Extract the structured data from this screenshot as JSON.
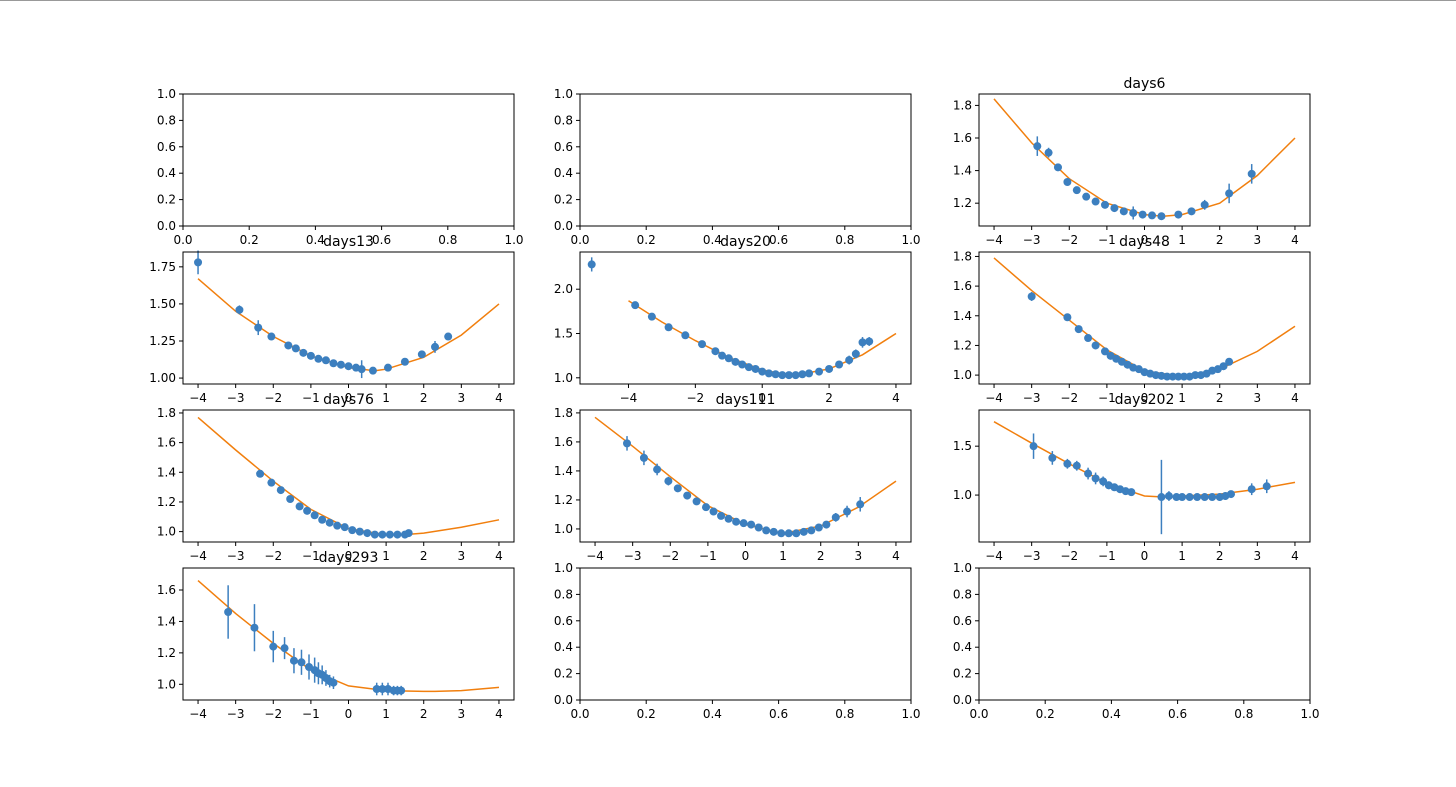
{
  "figure": {
    "colors": {
      "points": "#3c7fbf",
      "fit": "#f17f0e",
      "axes": "#000000"
    }
  },
  "chart_data": [
    {
      "type": "empty",
      "title": "",
      "xlim": [
        0,
        1
      ],
      "ylim": [
        0,
        1
      ],
      "xticks": [
        0.0,
        0.2,
        0.4,
        0.6,
        0.8,
        1.0
      ],
      "yticks": [
        0.0,
        0.2,
        0.4,
        0.6,
        0.8,
        1.0
      ],
      "tick_decimals": 1
    },
    {
      "type": "empty",
      "title": "",
      "xlim": [
        0,
        1
      ],
      "ylim": [
        0,
        1
      ],
      "xticks": [
        0.0,
        0.2,
        0.4,
        0.6,
        0.8,
        1.0
      ],
      "yticks": [
        0.0,
        0.2,
        0.4,
        0.6,
        0.8,
        1.0
      ],
      "tick_decimals": 1
    },
    {
      "type": "scatter",
      "title": "days6",
      "xlim": [
        -4.4,
        4.4
      ],
      "ylim": [
        1.06,
        1.87
      ],
      "xticks": [
        -4,
        -3,
        -2,
        -1,
        0,
        1,
        2,
        3,
        4
      ],
      "yticks": [
        1.2,
        1.4,
        1.6,
        1.8
      ],
      "tick_decimals": 1,
      "points": {
        "x": [
          -2.85,
          -2.55,
          -2.3,
          -2.05,
          -1.8,
          -1.55,
          -1.3,
          -1.05,
          -0.8,
          -0.55,
          -0.3,
          -0.05,
          0.2,
          0.45,
          0.9,
          1.25,
          1.6,
          2.25,
          2.85
        ],
        "y": [
          1.55,
          1.51,
          1.42,
          1.33,
          1.28,
          1.24,
          1.21,
          1.19,
          1.17,
          1.15,
          1.14,
          1.13,
          1.125,
          1.12,
          1.13,
          1.15,
          1.19,
          1.26,
          1.38
        ],
        "err": [
          0.06,
          0.03,
          0.02,
          0.02,
          0.02,
          0.01,
          0.01,
          0.01,
          0.01,
          0.02,
          0.04,
          0.01,
          0.01,
          0.01,
          0.01,
          0.02,
          0.03,
          0.06,
          0.06
        ]
      },
      "fit": {
        "x": [
          -4,
          -3,
          -2,
          -1,
          0,
          0.5,
          1,
          2,
          3,
          4
        ],
        "y": [
          1.84,
          1.57,
          1.35,
          1.2,
          1.13,
          1.12,
          1.13,
          1.2,
          1.37,
          1.6
        ]
      }
    },
    {
      "type": "scatter",
      "title": "days13",
      "xlim": [
        -4.4,
        4.4
      ],
      "ylim": [
        0.96,
        1.85
      ],
      "xticks": [
        -4,
        -3,
        -2,
        -1,
        0,
        1,
        2,
        3,
        4
      ],
      "yticks": [
        1.0,
        1.25,
        1.5,
        1.75
      ],
      "tick_decimals": 2,
      "points": {
        "x": [
          -4.0,
          -2.9,
          -2.4,
          -2.05,
          -1.6,
          -1.4,
          -1.2,
          -1.0,
          -0.8,
          -0.6,
          -0.4,
          -0.2,
          0.0,
          0.2,
          0.35,
          0.65,
          1.05,
          1.5,
          1.95,
          2.3,
          2.65
        ],
        "y": [
          1.78,
          1.46,
          1.34,
          1.28,
          1.22,
          1.2,
          1.17,
          1.15,
          1.13,
          1.12,
          1.1,
          1.09,
          1.08,
          1.07,
          1.06,
          1.05,
          1.07,
          1.11,
          1.16,
          1.21,
          1.28
        ],
        "err": [
          0.08,
          0.03,
          0.05,
          0.02,
          0.01,
          0.01,
          0.01,
          0.01,
          0.01,
          0.01,
          0.01,
          0.01,
          0.01,
          0.02,
          0.06,
          0.01,
          0.01,
          0.01,
          0.02,
          0.04,
          0.02
        ]
      },
      "fit": {
        "x": [
          -4,
          -3,
          -2,
          -1,
          0,
          0.7,
          1,
          2,
          3,
          4
        ],
        "y": [
          1.67,
          1.45,
          1.28,
          1.15,
          1.07,
          1.05,
          1.06,
          1.14,
          1.29,
          1.5
        ]
      }
    },
    {
      "type": "scatter",
      "title": "days20",
      "xlim": [
        -5.45,
        4.45
      ],
      "ylim": [
        0.93,
        2.42
      ],
      "xticks": [
        -4,
        -2,
        0,
        2,
        4
      ],
      "yticks": [
        1.0,
        1.5,
        2.0
      ],
      "tick_decimals": 1,
      "points": {
        "x": [
          -5.1,
          -3.8,
          -3.3,
          -2.8,
          -2.3,
          -1.8,
          -1.4,
          -1.2,
          -1.0,
          -0.8,
          -0.6,
          -0.4,
          -0.2,
          0.0,
          0.2,
          0.4,
          0.6,
          0.8,
          1.0,
          1.2,
          1.4,
          1.7,
          2.0,
          2.3,
          2.6,
          2.8,
          3.0,
          3.2
        ],
        "y": [
          2.28,
          1.82,
          1.69,
          1.57,
          1.48,
          1.38,
          1.3,
          1.25,
          1.22,
          1.18,
          1.15,
          1.12,
          1.1,
          1.07,
          1.05,
          1.04,
          1.03,
          1.03,
          1.03,
          1.04,
          1.05,
          1.07,
          1.1,
          1.15,
          1.2,
          1.27,
          1.4,
          1.41
        ],
        "err": [
          0.08,
          0.03,
          0.04,
          0.02,
          0.02,
          0.02,
          0.02,
          0.01,
          0.01,
          0.01,
          0.01,
          0.01,
          0.01,
          0.01,
          0.01,
          0.01,
          0.01,
          0.01,
          0.01,
          0.01,
          0.01,
          0.01,
          0.02,
          0.02,
          0.05,
          0.05,
          0.06,
          0.05
        ]
      },
      "fit": {
        "x": [
          -4,
          -3,
          -2,
          -1,
          0,
          0.8,
          1,
          2,
          3,
          4
        ],
        "y": [
          1.87,
          1.63,
          1.42,
          1.23,
          1.09,
          1.03,
          1.03,
          1.1,
          1.26,
          1.5
        ]
      }
    },
    {
      "type": "scatter",
      "title": "days48",
      "xlim": [
        -4.4,
        4.4
      ],
      "ylim": [
        0.94,
        1.83
      ],
      "xticks": [
        -4,
        -3,
        -2,
        -1,
        0,
        1,
        2,
        3,
        4
      ],
      "yticks": [
        1.0,
        1.2,
        1.4,
        1.6,
        1.8
      ],
      "tick_decimals": 1,
      "points": {
        "x": [
          -3.0,
          -2.05,
          -1.75,
          -1.5,
          -1.3,
          -1.05,
          -0.9,
          -0.75,
          -0.6,
          -0.45,
          -0.3,
          -0.15,
          0.0,
          0.15,
          0.3,
          0.45,
          0.6,
          0.75,
          0.9,
          1.05,
          1.2,
          1.35,
          1.5,
          1.65,
          1.8,
          1.95,
          2.1,
          2.25
        ],
        "y": [
          1.53,
          1.39,
          1.31,
          1.25,
          1.2,
          1.16,
          1.13,
          1.11,
          1.09,
          1.07,
          1.05,
          1.04,
          1.02,
          1.01,
          1.0,
          0.995,
          0.99,
          0.99,
          0.99,
          0.99,
          0.99,
          1.0,
          1.0,
          1.01,
          1.03,
          1.04,
          1.06,
          1.09
        ],
        "err": [
          0.03,
          0.02,
          0.02,
          0.01,
          0.01,
          0.01,
          0.01,
          0.01,
          0.01,
          0.01,
          0.01,
          0.01,
          0.01,
          0.01,
          0.01,
          0.01,
          0.01,
          0.01,
          0.01,
          0.01,
          0.01,
          0.01,
          0.01,
          0.01,
          0.01,
          0.01,
          0.01,
          0.01
        ]
      },
      "fit": {
        "x": [
          -4,
          -3,
          -2,
          -1,
          0,
          1,
          2,
          3,
          4
        ],
        "y": [
          1.79,
          1.57,
          1.37,
          1.17,
          1.03,
          0.99,
          1.04,
          1.16,
          1.33
        ]
      }
    },
    {
      "type": "scatter",
      "title": "days76",
      "xlim": [
        -4.4,
        4.4
      ],
      "ylim": [
        0.93,
        1.82
      ],
      "xticks": [
        -4,
        -3,
        -2,
        -1,
        0,
        1,
        2,
        3,
        4
      ],
      "yticks": [
        1.0,
        1.2,
        1.4,
        1.6,
        1.8
      ],
      "tick_decimals": 1,
      "points": {
        "x": [
          -2.35,
          -2.05,
          -1.8,
          -1.55,
          -1.3,
          -1.1,
          -0.9,
          -0.7,
          -0.5,
          -0.3,
          -0.1,
          0.1,
          0.3,
          0.5,
          0.7,
          0.9,
          1.1,
          1.3,
          1.5,
          1.6
        ],
        "y": [
          1.39,
          1.33,
          1.28,
          1.22,
          1.17,
          1.14,
          1.11,
          1.08,
          1.06,
          1.04,
          1.03,
          1.01,
          1.0,
          0.99,
          0.98,
          0.98,
          0.98,
          0.98,
          0.98,
          0.99
        ],
        "err": [
          0.01,
          0.01,
          0.01,
          0.01,
          0.01,
          0.01,
          0.01,
          0.01,
          0.01,
          0.01,
          0.01,
          0.01,
          0.01,
          0.01,
          0.01,
          0.01,
          0.01,
          0.01,
          0.01,
          0.01
        ]
      },
      "fit": {
        "x": [
          -4,
          -3,
          -2,
          -1,
          0,
          1,
          1.5,
          2,
          3,
          4
        ],
        "y": [
          1.77,
          1.55,
          1.34,
          1.15,
          1.02,
          0.98,
          0.98,
          0.99,
          1.03,
          1.08
        ]
      }
    },
    {
      "type": "scatter",
      "title": "days111",
      "xlim": [
        -4.4,
        4.4
      ],
      "ylim": [
        0.91,
        1.82
      ],
      "xticks": [
        -4,
        -3,
        -2,
        -1,
        0,
        1,
        2,
        3,
        4
      ],
      "yticks": [
        1.0,
        1.2,
        1.4,
        1.6,
        1.8
      ],
      "tick_decimals": 1,
      "points": {
        "x": [
          -3.15,
          -2.7,
          -2.35,
          -2.05,
          -1.8,
          -1.55,
          -1.3,
          -1.05,
          -0.85,
          -0.65,
          -0.45,
          -0.25,
          -0.05,
          0.15,
          0.35,
          0.55,
          0.75,
          0.95,
          1.15,
          1.35,
          1.55,
          1.75,
          1.95,
          2.15,
          2.4,
          2.7,
          3.05
        ],
        "y": [
          1.59,
          1.49,
          1.41,
          1.33,
          1.28,
          1.23,
          1.19,
          1.15,
          1.12,
          1.09,
          1.07,
          1.05,
          1.04,
          1.03,
          1.01,
          0.99,
          0.98,
          0.97,
          0.97,
          0.97,
          0.98,
          0.99,
          1.01,
          1.03,
          1.08,
          1.12,
          1.17
        ],
        "err": [
          0.05,
          0.05,
          0.04,
          0.03,
          0.02,
          0.02,
          0.02,
          0.01,
          0.01,
          0.01,
          0.01,
          0.01,
          0.01,
          0.01,
          0.01,
          0.01,
          0.01,
          0.01,
          0.01,
          0.01,
          0.01,
          0.01,
          0.02,
          0.02,
          0.03,
          0.04,
          0.05
        ]
      },
      "fit": {
        "x": [
          -4,
          -3,
          -2,
          -1,
          0,
          1,
          2,
          3,
          4
        ],
        "y": [
          1.77,
          1.57,
          1.36,
          1.16,
          1.03,
          0.97,
          1.02,
          1.15,
          1.33
        ]
      }
    },
    {
      "type": "scatter",
      "title": "days202",
      "xlim": [
        -4.4,
        4.4
      ],
      "ylim": [
        0.52,
        1.87
      ],
      "xticks": [
        -4,
        -3,
        -2,
        -1,
        0,
        1,
        2,
        3,
        4
      ],
      "yticks": [
        1.0,
        1.5
      ],
      "tick_decimals": 1,
      "points": {
        "x": [
          -2.95,
          -2.45,
          -2.05,
          -1.8,
          -1.5,
          -1.3,
          -1.1,
          -0.95,
          -0.8,
          -0.65,
          -0.5,
          -0.35,
          0.45,
          0.65,
          0.85,
          1.0,
          1.2,
          1.4,
          1.6,
          1.8,
          2.0,
          2.15,
          2.3,
          2.85,
          3.25
        ],
        "y": [
          1.5,
          1.38,
          1.32,
          1.3,
          1.22,
          1.17,
          1.14,
          1.1,
          1.08,
          1.06,
          1.04,
          1.03,
          0.98,
          0.99,
          0.98,
          0.98,
          0.98,
          0.98,
          0.98,
          0.98,
          0.98,
          0.99,
          1.01,
          1.06,
          1.09
        ],
        "err": [
          0.13,
          0.07,
          0.05,
          0.05,
          0.06,
          0.06,
          0.05,
          0.04,
          0.03,
          0.03,
          0.02,
          0.02,
          0.38,
          0.05,
          0.03,
          0.03,
          0.03,
          0.03,
          0.03,
          0.03,
          0.04,
          0.04,
          0.03,
          0.06,
          0.07
        ]
      },
      "fit": {
        "x": [
          -4,
          -3,
          -2,
          -1,
          0,
          0.5,
          1,
          2,
          3,
          4
        ],
        "y": [
          1.75,
          1.53,
          1.32,
          1.12,
          0.99,
          0.98,
          0.99,
          1.01,
          1.06,
          1.13
        ]
      }
    },
    {
      "type": "scatter",
      "title": "days293",
      "xlim": [
        -4.4,
        4.4
      ],
      "ylim": [
        0.9,
        1.74
      ],
      "xticks": [
        -4,
        -3,
        -2,
        -1,
        0,
        1,
        2,
        3,
        4
      ],
      "yticks": [
        1.0,
        1.2,
        1.4,
        1.6
      ],
      "tick_decimals": 1,
      "points": {
        "x": [
          -3.2,
          -2.5,
          -2.0,
          -1.7,
          -1.45,
          -1.25,
          -1.05,
          -0.9,
          -0.8,
          -0.7,
          -0.6,
          -0.5,
          -0.4,
          0.75,
          0.9,
          1.05,
          1.2,
          1.3,
          1.4
        ],
        "y": [
          1.46,
          1.36,
          1.24,
          1.23,
          1.15,
          1.14,
          1.11,
          1.09,
          1.07,
          1.06,
          1.04,
          1.02,
          1.01,
          0.97,
          0.97,
          0.97,
          0.96,
          0.96,
          0.96
        ],
        "err": [
          0.17,
          0.15,
          0.1,
          0.07,
          0.08,
          0.08,
          0.08,
          0.08,
          0.07,
          0.06,
          0.05,
          0.04,
          0.04,
          0.04,
          0.04,
          0.04,
          0.03,
          0.03,
          0.03
        ]
      },
      "fit": {
        "x": [
          -4,
          -3,
          -2,
          -1,
          0,
          1,
          2,
          2.3,
          3,
          4
        ],
        "y": [
          1.66,
          1.45,
          1.26,
          1.09,
          0.99,
          0.96,
          0.955,
          0.955,
          0.96,
          0.98
        ]
      }
    },
    {
      "type": "empty",
      "title": "",
      "xlim": [
        0,
        1
      ],
      "ylim": [
        0,
        1
      ],
      "xticks": [
        0.0,
        0.2,
        0.4,
        0.6,
        0.8,
        1.0
      ],
      "yticks": [
        0.0,
        0.2,
        0.4,
        0.6,
        0.8,
        1.0
      ],
      "tick_decimals": 1
    },
    {
      "type": "empty",
      "title": "",
      "xlim": [
        0,
        1
      ],
      "ylim": [
        0,
        1
      ],
      "xticks": [
        0.0,
        0.2,
        0.4,
        0.6,
        0.8,
        1.0
      ],
      "yticks": [
        0.0,
        0.2,
        0.4,
        0.6,
        0.8,
        1.0
      ],
      "tick_decimals": 1
    }
  ]
}
